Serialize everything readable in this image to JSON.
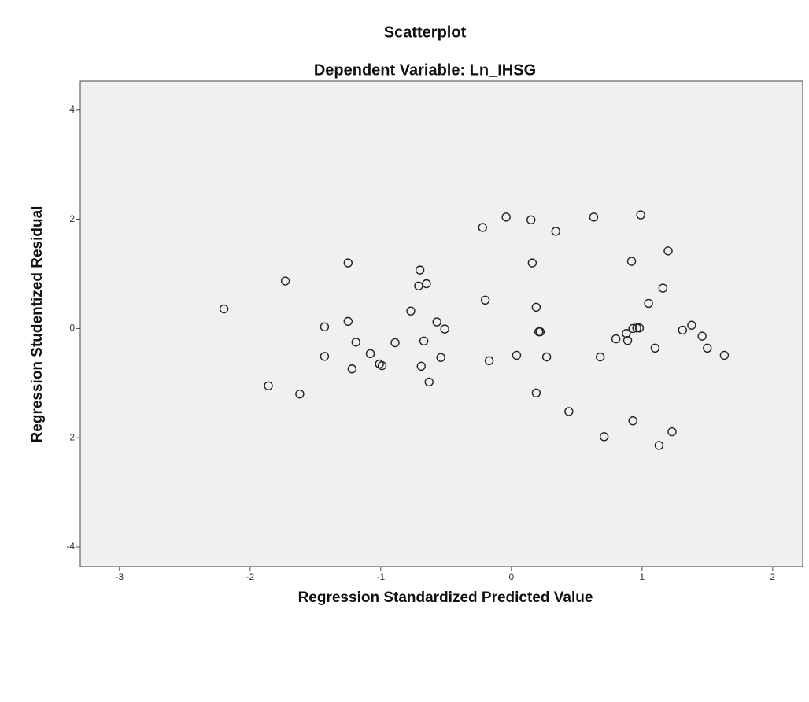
{
  "chart_data": {
    "type": "scatter",
    "title": "Scatterplot",
    "subtitle": "Dependent Variable: Ln_IHSG",
    "x_label": "Regression Standardized Predicted Value",
    "y_label": "Regression Studentized Residual",
    "color": "#222222",
    "x": [
      -2.2,
      -1.73,
      -1.86,
      -1.62,
      -1.25,
      -1.43,
      -1.43,
      -1.25,
      -1.19,
      -1.22,
      -1.08,
      -1.01,
      -0.99,
      -0.89,
      -0.77,
      -0.7,
      -0.71,
      -0.65,
      -0.67,
      -0.69,
      -0.51,
      -0.57,
      -0.63,
      -0.54,
      -0.22,
      -0.2,
      -0.17,
      -0.04,
      0.04,
      0.15,
      0.16,
      0.19,
      0.21,
      0.22,
      0.19,
      0.27,
      0.34,
      0.44,
      0.63,
      0.68,
      0.71,
      0.8,
      0.88,
      0.89,
      0.92,
      0.93,
      0.96,
      0.98,
      0.93,
      0.99,
      1.05,
      1.1,
      1.16,
      1.2,
      1.13,
      1.23,
      1.31,
      1.38,
      1.46,
      1.5,
      1.63
    ],
    "y": [
      0.36,
      0.87,
      -1.05,
      -1.2,
      1.2,
      0.03,
      -0.51,
      0.13,
      -0.25,
      -0.74,
      -0.46,
      -0.65,
      -0.68,
      -0.26,
      0.32,
      1.07,
      0.78,
      0.82,
      -0.23,
      -0.69,
      -0.01,
      0.12,
      -0.98,
      -0.53,
      1.85,
      0.52,
      -0.59,
      2.04,
      -0.49,
      1.99,
      1.2,
      0.39,
      -0.06,
      -0.06,
      -1.18,
      -0.52,
      1.78,
      -1.52,
      2.04,
      -0.52,
      -1.98,
      -0.19,
      -0.09,
      -0.22,
      1.23,
      0.0,
      0.01,
      0.01,
      -1.69,
      2.08,
      0.46,
      -0.36,
      0.74,
      1.42,
      -2.14,
      -1.89,
      -0.03,
      0.06,
      -0.14,
      -0.36,
      -0.49
    ],
    "xlim": [
      -3.3,
      2.23
    ],
    "ylim": [
      -4.36,
      4.53
    ],
    "xticks": [
      -3,
      -2,
      -1,
      0,
      1,
      2
    ],
    "yticks": [
      -4,
      -2,
      0,
      2,
      4
    ]
  }
}
